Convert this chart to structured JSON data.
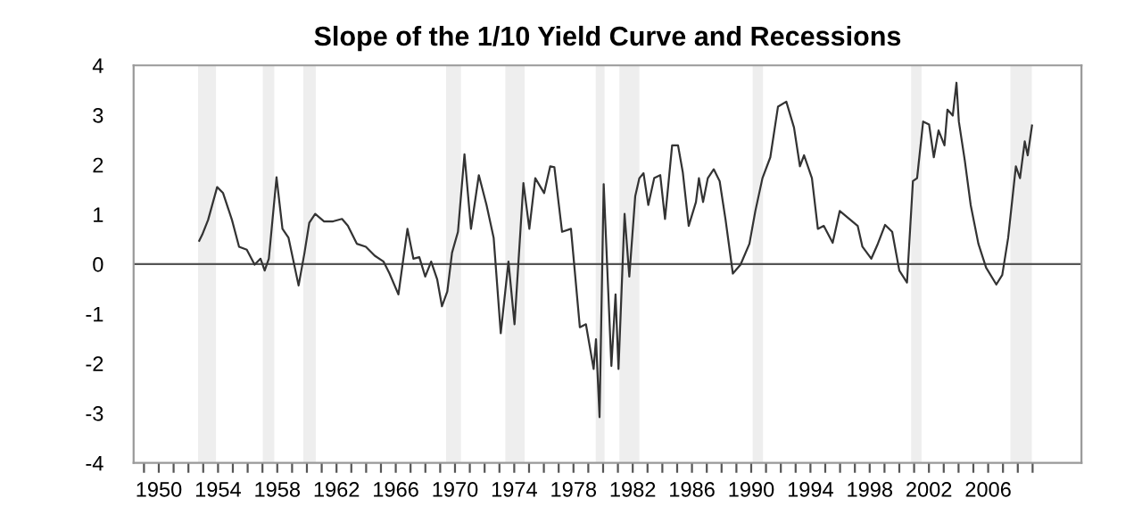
{
  "chart_data": {
    "type": "line",
    "title": "Slope of the 1/10 Yield Curve and Recessions",
    "x": [
      1952.73,
      1952.93,
      1953.33,
      1953.94,
      1954.34,
      1954.94,
      1955.42,
      1955.94,
      1956.47,
      1956.87,
      1957.15,
      1957.43,
      1957.95,
      1958.35,
      1958.76,
      1959.44,
      1959.84,
      1960.16,
      1960.56,
      1961.16,
      1961.77,
      1962.37,
      1962.77,
      1963.37,
      1963.98,
      1964.58,
      1965.18,
      1965.58,
      1966.18,
      1966.79,
      1967.19,
      1967.59,
      1967.99,
      1968.39,
      1968.8,
      1969.12,
      1969.48,
      1969.8,
      1970.2,
      1970.64,
      1971.08,
      1971.61,
      1972.13,
      1972.61,
      1973.09,
      1973.61,
      1974.02,
      1974.62,
      1975.02,
      1975.42,
      1976.02,
      1976.43,
      1976.71,
      1977.23,
      1977.83,
      1978.43,
      1978.84,
      1979.36,
      1979.52,
      1979.76,
      1980.04,
      1980.56,
      1980.84,
      1981.04,
      1981.45,
      1981.77,
      1982.17,
      1982.45,
      1982.73,
      1983.05,
      1983.45,
      1983.86,
      1984.18,
      1984.66,
      1985.06,
      1985.38,
      1985.78,
      1986.27,
      1986.47,
      1986.75,
      1987.07,
      1987.47,
      1987.87,
      1988.27,
      1988.76,
      1989.28,
      1989.88,
      1990.28,
      1990.76,
      1991.29,
      1991.81,
      1992.37,
      1992.89,
      1993.29,
      1993.57,
      1994.1,
      1994.5,
      1994.9,
      1995.5,
      1995.98,
      1996.63,
      1997.19,
      1997.51,
      1998.11,
      1998.51,
      1999.04,
      1999.52,
      2000.0,
      2000.52,
      2000.92,
      2001.2,
      2001.61,
      2002.01,
      2002.33,
      2002.65,
      2003.05,
      2003.25,
      2003.61,
      2003.86,
      2004.02,
      2004.42,
      2004.82,
      2005.34,
      2005.86,
      2006.55,
      2006.95,
      2007.35,
      2007.87,
      2008.15,
      2008.47,
      2008.67,
      2008.96
    ],
    "series": [
      {
        "color": "#333333",
        "values": [
          0.47,
          0.59,
          0.89,
          1.55,
          1.43,
          0.89,
          0.35,
          0.29,
          -0.01,
          0.11,
          -0.13,
          0.11,
          1.75,
          0.71,
          0.53,
          -0.43,
          0.23,
          0.83,
          1.01,
          0.86,
          0.86,
          0.91,
          0.77,
          0.41,
          0.35,
          0.17,
          0.05,
          -0.19,
          -0.61,
          0.71,
          0.11,
          0.14,
          -0.25,
          0.05,
          -0.31,
          -0.85,
          -0.55,
          0.23,
          0.65,
          2.21,
          0.71,
          1.79,
          1.19,
          0.53,
          -1.39,
          0.05,
          -1.21,
          1.63,
          0.71,
          1.73,
          1.43,
          1.97,
          1.95,
          0.65,
          0.71,
          -1.27,
          -1.21,
          -2.11,
          -1.51,
          -3.08,
          1.61,
          -2.05,
          -0.61,
          -2.11,
          1.01,
          -0.25,
          1.37,
          1.73,
          1.83,
          1.19,
          1.73,
          1.79,
          0.91,
          2.39,
          2.39,
          1.85,
          0.77,
          1.25,
          1.73,
          1.25,
          1.73,
          1.91,
          1.67,
          0.89,
          -0.19,
          -0.01,
          0.41,
          1.07,
          1.73,
          2.15,
          3.17,
          3.27,
          2.75,
          1.97,
          2.19,
          1.73,
          0.71,
          0.77,
          0.43,
          1.07,
          0.91,
          0.77,
          0.35,
          0.11,
          0.38,
          0.79,
          0.65,
          -0.13,
          -0.37,
          1.67,
          1.73,
          2.87,
          2.81,
          2.15,
          2.69,
          2.39,
          3.11,
          2.99,
          3.65,
          2.87,
          2.09,
          1.19,
          0.41,
          -0.07,
          -0.41,
          -0.22,
          0.53,
          1.97,
          1.73,
          2.47,
          2.19,
          2.79
        ]
      }
    ],
    "xlim": [
      1948.3,
      2012.3
    ],
    "xticks": [
      {
        "value": 1949,
        "label": null
      },
      1950,
      {
        "value": 1951,
        "label": null
      },
      {
        "value": 1952,
        "label": null
      },
      {
        "value": 1953,
        "label": null
      },
      1954,
      {
        "value": 1955,
        "label": null
      },
      {
        "value": 1956,
        "label": null
      },
      {
        "value": 1957,
        "label": null
      },
      1958,
      {
        "value": 1959,
        "label": null
      },
      {
        "value": 1960,
        "label": null
      },
      {
        "value": 1961,
        "label": null
      },
      1962,
      {
        "value": 1963,
        "label": null
      },
      {
        "value": 1964,
        "label": null
      },
      {
        "value": 1965,
        "label": null
      },
      1966,
      {
        "value": 1967,
        "label": null
      },
      {
        "value": 1968,
        "label": null
      },
      {
        "value": 1969,
        "label": null
      },
      1970,
      {
        "value": 1971,
        "label": null
      },
      {
        "value": 1972,
        "label": null
      },
      {
        "value": 1973,
        "label": null
      },
      1974,
      {
        "value": 1975,
        "label": null
      },
      {
        "value": 1976,
        "label": null
      },
      {
        "value": 1977,
        "label": null
      },
      1978,
      {
        "value": 1979,
        "label": null
      },
      {
        "value": 1980,
        "label": null
      },
      {
        "value": 1981,
        "label": null
      },
      1982,
      {
        "value": 1983,
        "label": null
      },
      {
        "value": 1984,
        "label": null
      },
      {
        "value": 1985,
        "label": null
      },
      1986,
      {
        "value": 1987,
        "label": null
      },
      {
        "value": 1988,
        "label": null
      },
      {
        "value": 1989,
        "label": null
      },
      1990,
      {
        "value": 1991,
        "label": null
      },
      {
        "value": 1992,
        "label": null
      },
      {
        "value": 1993,
        "label": null
      },
      1994,
      {
        "value": 1995,
        "label": null
      },
      {
        "value": 1996,
        "label": null
      },
      {
        "value": 1997,
        "label": null
      },
      1998,
      {
        "value": 1999,
        "label": null
      },
      {
        "value": 2000,
        "label": null
      },
      {
        "value": 2001,
        "label": null
      },
      2002,
      {
        "value": 2003,
        "label": null
      },
      {
        "value": 2004,
        "label": null
      },
      {
        "value": 2005,
        "label": null
      },
      2006,
      {
        "value": 2007,
        "label": null
      },
      {
        "value": 2008,
        "label": null
      },
      {
        "value": 2009,
        "label": null
      }
    ],
    "ylim": [
      -4,
      4
    ],
    "yticks": [
      -4,
      -3,
      -2,
      -1,
      0,
      1,
      2,
      3,
      4
    ],
    "ref_lines": [
      {
        "axis": "y",
        "value": 0,
        "color": "#555555"
      }
    ],
    "bands": [
      {
        "axis": "x",
        "from": 1952.65,
        "to": 1953.86,
        "color": "#eeeeee"
      },
      {
        "axis": "x",
        "from": 1957.02,
        "to": 1957.8,
        "color": "#eeeeee"
      },
      {
        "axis": "x",
        "from": 1959.76,
        "to": 1960.6,
        "color": "#eeeeee"
      },
      {
        "axis": "x",
        "from": 1969.4,
        "to": 1970.4,
        "color": "#eeeeee"
      },
      {
        "axis": "x",
        "from": 1973.4,
        "to": 1974.7,
        "color": "#eeeeee"
      },
      {
        "axis": "x",
        "from": 1979.5,
        "to": 1980.1,
        "color": "#eeeeee"
      },
      {
        "axis": "x",
        "from": 1981.1,
        "to": 1982.45,
        "color": "#eeeeee"
      },
      {
        "axis": "x",
        "from": 1990.1,
        "to": 1990.8,
        "color": "#eeeeee"
      },
      {
        "axis": "x",
        "from": 2000.8,
        "to": 2001.5,
        "color": "#eeeeee"
      },
      {
        "axis": "x",
        "from": 2007.5,
        "to": 2008.95,
        "color": "#eeeeee"
      }
    ],
    "grid": false,
    "legend": false
  }
}
